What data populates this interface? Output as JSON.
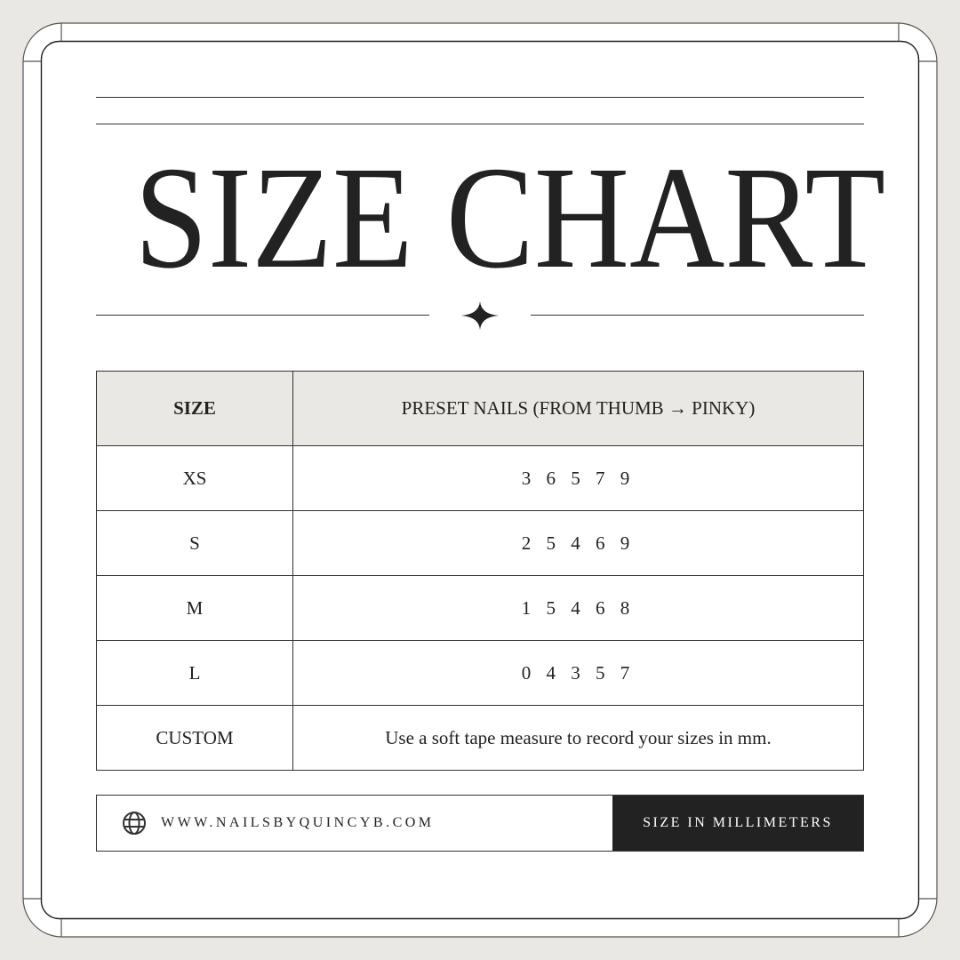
{
  "title": "SIZE CHART",
  "table": {
    "headers": [
      "SIZE",
      "PRESET NAILS (FROM THUMB → PINKY)"
    ],
    "rows": [
      {
        "size": "XS",
        "value": "3 6 5 7 9"
      },
      {
        "size": "S",
        "value": "2 5 4 6 9"
      },
      {
        "size": "M",
        "value": "1 5 4 6 8"
      },
      {
        "size": "L",
        "value": "0 4 3 5 7"
      },
      {
        "size": "CUSTOM",
        "value": "Use a soft tape measure to record your sizes in mm."
      }
    ]
  },
  "footer": {
    "icon": "globe-icon",
    "website": "WWW.NAILSBYQUINCYB.COM",
    "unit_label": "SIZE IN MILLIMETERS"
  },
  "colors": {
    "background": "#e9e8e4",
    "ink": "#222222",
    "header_fill": "#e9e8e4"
  }
}
